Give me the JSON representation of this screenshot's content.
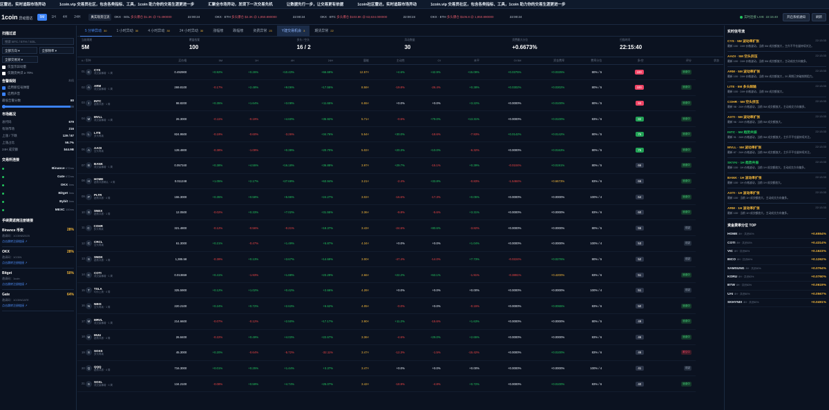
{
  "ticker": [
    "区雷达，实时追踪市场异动",
    "1coin.vip 交易员社区，包含各类指标、工具，1coin 助力你的交易生涯更进一步",
    "汇聚全市场异动，发现下一次交易先机",
    "让数据先行一步，让交易更有依据",
    "1coin社区雷达，实时追踪市场异动",
    "1coin.vip 交易员社区，包含各类指标、工具，1coin 助力你的交易生涯更进一步"
  ],
  "header": {
    "logo": "1coin",
    "logo_sub": "异动雷达",
    "timeframes": [
      "5M",
      "1H",
      "4H",
      "24H"
    ],
    "chip": "真实现货汪流",
    "live": [
      {
        "ex": "OKX · SOL",
        "msg": "多头爆仓 $1.3K @ 73.490000",
        "time": "22:00:24"
      },
      {
        "ex": "OKX · ETH",
        "msg": "多头爆仓 $2.3K @ 1,850.890000",
        "time": "22:00:24"
      },
      {
        "ex": "OKX · BTC",
        "msg": "多头爆仓 $103.8K @ 63,634.000000",
        "time": "22:00:24"
      },
      {
        "ex": "OKX · ETH",
        "msg": "多头爆仓 $105.8 @ 1,850.890000",
        "time": "22:00:24"
      }
    ],
    "status": "实时连接 LIVE",
    "clock": "22:15:40",
    "btn_notify": "开启系统通知",
    "btn_other": "刷新"
  },
  "sidebar": {
    "filter_title": "扫描过滤",
    "search_placeholder": "搜索 BTC / ETH / SOL",
    "dir": "全部方向",
    "pool": "全部频率",
    "rule": "全部交易对",
    "chk1": "仅显示异动量",
    "chk2": "仅期货共识 ≥ 70%",
    "alert_title": "告警规则",
    "alert_sub": "本机",
    "alert1": "启用新信号弹窗",
    "alert2": "启用声音",
    "min_score_label": "最低告警分数",
    "min_score": "80",
    "market_title": "市场概况",
    "market": [
      {
        "k": "总代码",
        "v": "679"
      },
      {
        "k": "有效市场",
        "v": "216"
      },
      {
        "k": "上涨 / 下跌",
        "v": "129 / 87"
      },
      {
        "k": "上涨占比",
        "v": "59.7%"
      },
      {
        "k": "24H 成交额",
        "v": "$44.9B"
      }
    ],
    "ex_title": "交易所连接",
    "exchanges": [
      {
        "name": "Binance",
        "lat": "672ms"
      },
      {
        "name": "Gate",
        "lat": "672ms"
      },
      {
        "name": "OKX",
        "lat": "4ms"
      },
      {
        "name": "Bitget",
        "lat": "3ms"
      },
      {
        "name": "Bybit",
        "lat": "5ms"
      },
      {
        "name": "MEXC",
        "lat": "100ms"
      }
    ],
    "rebate_title": "手续费返佣注册链接",
    "rebates": [
      {
        "name": "Binance 币安",
        "pct": "28%",
        "code": "邀请码：1COINB2025",
        "link": "点击跳转注册链接 ↗"
      },
      {
        "name": "OKX",
        "pct": "28%",
        "code": "邀请码：1COIN",
        "link": "点击跳转注册链接 ↗"
      },
      {
        "name": "Bitget",
        "pct": "50%",
        "code": "邀请码：1coin",
        "link": "点击跳转注册链接 ↗"
      },
      {
        "name": "Gate",
        "pct": "64%",
        "code": "邀请码：1COINGATE",
        "link": "点击跳转注册链接 ↗"
      }
    ]
  },
  "tabs": [
    {
      "label": "5 分钟异动",
      "count": "30"
    },
    {
      "label": "1 小时异动",
      "count": "30"
    },
    {
      "label": "4 小时异动",
      "count": "30"
    },
    {
      "label": "24 小时异动",
      "count": "30"
    },
    {
      "label": "涨幅榜",
      "count": ""
    },
    {
      "label": "跌幅榜",
      "count": ""
    },
    {
      "label": "资费异常",
      "count": "23"
    },
    {
      "label": "Y建交易机会",
      "count": "3"
    },
    {
      "label": "期货异常",
      "count": "22"
    }
  ],
  "stats": [
    {
      "k": "当前周期",
      "v": "5M"
    },
    {
      "k": "覆盖档案",
      "v": "100"
    },
    {
      "k": "多头 / 空头",
      "v": "16 / 2"
    },
    {
      "k": "异动数量",
      "v": "30"
    },
    {
      "k": "资费最大分位",
      "v": "+0.6673%"
    },
    {
      "k": "扫描时间",
      "v": "22:15:40"
    }
  ],
  "columns": [
    "# / 币种",
    "买价格",
    "5M",
    "1H",
    "4H",
    "24H",
    "量能",
    "主动性",
    "OI",
    "未平",
    "OI 5M",
    "资金费率",
    "费率分位",
    "多/空",
    "评分",
    "状态"
  ],
  "rows": [
    {
      "rk": "01",
      "ic": "C",
      "sym": "CYS",
      "sub": "成交量暴增 · 1 周",
      "p": "0.492900",
      "c": [
        "+0.92%",
        "+0.26%",
        "+10.43%",
        "+66.69%"
      ],
      "v": "12.57×",
      "a": "+4.6%",
      "oi": "+42.9%",
      "u": "+15.09%",
      "o5": "+0.0375%",
      "fr": "+0.0325%",
      "ls": "80% / 5",
      "sc": "100",
      "sv": 1,
      "tg": "追涨中",
      "tv": 0
    },
    {
      "rk": "02",
      "ic": "A",
      "sym": "ARM",
      "sub": "成交量暴增 · 1 周",
      "p": "269.8100",
      "c": [
        "-0.17%",
        "+2.48%",
        "+9.06%",
        "+17.55%"
      ],
      "v": "8.58×",
      "a": "-19.8%",
      "oi": "-26.4%",
      "u": "+0.38%",
      "o5": "+0.0302%",
      "fr": "+0.0302%",
      "ls": "80% / 5",
      "sc": "100",
      "sv": 1,
      "tg": "追涨中",
      "tv": 0
    },
    {
      "rk": "03",
      "ic": "I",
      "sym": "INTC",
      "sub": "趋势共振 · 1 周",
      "p": "98.8200",
      "c": [
        "+0.35%",
        "+1.64%",
        "+3.08%",
        "+11.65%"
      ],
      "v": "6.55×",
      "a": "+0.0%",
      "oi": "+0.0%",
      "u": "+3.22%",
      "o5": "+0.0000%",
      "fr": "+0.0100%",
      "ls": "80% / 5",
      "sc": "93",
      "sv": 1,
      "tg": "追涨中",
      "tv": 0
    },
    {
      "rk": "04",
      "ic": "M",
      "sym": "MVLL",
      "sub": "成交量暴增 · 4 周",
      "p": "26.3000",
      "c": [
        "-0.11%",
        "-0.19%",
        "+4.60%",
        "+35.92%"
      ],
      "v": "5.71×",
      "a": "-0.5%",
      "oi": "+79.0%",
      "u": "+13.31%",
      "o5": "+0.0000%",
      "fr": "+0.0100%",
      "ls": "83% / 6",
      "sc": "82",
      "sv": 2,
      "tg": "追涨中",
      "tv": 0
    },
    {
      "rk": "05",
      "ic": "L",
      "sym": "LITE",
      "sub": "多头再续",
      "p": "824.9500",
      "c": [
        "-0.19%",
        "-0.60%",
        "-3.26%",
        "+34.76%"
      ],
      "v": "5.54×",
      "a": "+30.0%",
      "oi": "-18.6%",
      "u": "-7.93%",
      "o5": "+0.0142%",
      "fr": "+0.0142%",
      "ls": "80% / 5",
      "sc": "76",
      "sv": 2,
      "tg": "追涨中",
      "tv": 0
    },
    {
      "rk": "06",
      "ic": "A",
      "sym": "AAOI",
      "sub": "空头再续",
      "p": "128.4800",
      "c": [
        "-0.38%",
        "-1.09%",
        "+0.39%",
        "+20.70%"
      ],
      "v": "5.02×",
      "a": "+20.3%",
      "oi": "+10.0%",
      "u": "-6.32%",
      "o5": "+0.0000%",
      "fr": "+0.0163%",
      "ls": "80% / 5",
      "sc": "76",
      "sv": 2,
      "tg": "追涨中",
      "tv": 0
    },
    {
      "rk": "07",
      "ic": "B",
      "sym": "BANK",
      "sub": "成交量暴增 · 1 周",
      "p": "0.057340",
      "c": [
        "+0.38%",
        "+4.55%",
        "+16.18%",
        "+36.88%"
      ],
      "v": "3.97×",
      "a": "+29.7%",
      "oi": "-15.1%",
      "u": "+0.39%",
      "o5": "-0.0104%",
      "fr": "+0.0191%",
      "ls": "80% / 5",
      "sc": "66",
      "sv": 0,
      "tg": "追涨中",
      "tv": 0
    },
    {
      "rk": "08",
      "ic": "H",
      "sym": "HOME",
      "sub": "趋势共振确认 · 4 周",
      "p": "0.011248",
      "c": [
        "+1.05%",
        "+2.17%",
        "+27.69%",
        "+63.94%"
      ],
      "v": "3.21×",
      "a": "-2.4%",
      "oi": "+33.8%",
      "u": "-0.83%",
      "o5": "-1.5484%",
      "fr": "+0.6673%",
      "ls": "83% / 6",
      "sc": "66",
      "sv": 0,
      "tg": "追涨中",
      "tv": 0
    },
    {
      "rk": "09",
      "ic": "P",
      "sym": "PLTR",
      "sub": "趋势共振 · 4 周",
      "p": "155.3000",
      "c": [
        "+0.35%",
        "+0.58%",
        "+5.96%",
        "+24.27%"
      ],
      "v": "3.02×",
      "a": "-16.6%",
      "oi": "-17.3%",
      "u": "+0.05%",
      "o5": "+0.0000%",
      "fr": "+0.0000%",
      "ls": "100% / 4",
      "sc": "64",
      "sv": 0,
      "tg": "追涨中",
      "tv": 0
    },
    {
      "rk": "10",
      "ic": "S",
      "sym": "SNEX",
      "sub": "趋势共振 · 1 周",
      "p": "12.0500",
      "c": [
        "-0.02%",
        "+0.33%",
        "+7.02%",
        "+31.55%"
      ],
      "v": "3.36×",
      "a": "-9.8%",
      "oi": "-5.6%",
      "u": "+3.31%",
      "o5": "+0.0000%",
      "fr": "+0.0000%",
      "ls": "83% / 6",
      "sc": "60",
      "sv": 0,
      "tg": "追涨中",
      "tv": 0
    },
    {
      "rk": "11",
      "ic": "C",
      "sym": "COHR",
      "sub": "多头再续",
      "p": "321.4800",
      "c": [
        "-0.12%",
        "-0.56%",
        "-0.21%",
        "+18.37%"
      ],
      "v": "3.43×",
      "a": "-24.6%",
      "oi": "+80.6%",
      "u": "-3.82%",
      "o5": "+0.0000%",
      "fr": "+0.0000%",
      "ls": "80% / 5",
      "sc": "55",
      "sv": 0,
      "tg": "观望",
      "tv": 1
    },
    {
      "rk": "12",
      "ic": "C",
      "sym": "CRCL",
      "sub": "空头再续",
      "p": "61.3000",
      "c": [
        "+0.21%",
        "-0.47%",
        "+1.49%",
        "+5.87%"
      ],
      "v": "4.34×",
      "a": "+0.0%",
      "oi": "+0.0%",
      "u": "+1.04%",
      "o5": "+0.0000%",
      "fr": "+0.0000%",
      "ls": "100% / 4",
      "sc": "53",
      "sv": 0,
      "tg": "观望",
      "tv": 1
    },
    {
      "rk": "13",
      "ic": "S",
      "sym": "SNDK",
      "sub": "趋势共振 · 1 周",
      "p": "1,385.58",
      "c": [
        "-0.39%",
        "+0.13%",
        "+3.67%",
        "+14.69%"
      ],
      "v": "3.00×",
      "a": "-47.4%",
      "oi": "-14.0%",
      "u": "+7.73%",
      "o5": "-0.0224%",
      "fr": "+0.0276%",
      "ls": "80% / 5",
      "sc": "52",
      "sv": 0,
      "tg": "观望",
      "tv": 1
    },
    {
      "rk": "14",
      "ic": "C",
      "sym": "COTI",
      "sub": "成交量暴增 · 1 周",
      "p": "0.013659",
      "c": [
        "+0.41%",
        "-1.93%",
        "+1.88%",
        "+23.29%"
      ],
      "v": "2.66×",
      "a": "+22.2%",
      "oi": "+63.1%",
      "u": "-1.91%",
      "o5": "-0.3891%",
      "fr": "+0.4200%",
      "ls": "83% / 6",
      "sc": "51",
      "sv": 0,
      "tg": "追涨中",
      "tv": 0
    },
    {
      "rk": "15",
      "ic": "T",
      "sym": "TSLA",
      "sub": "均价上扬 · 4 周",
      "p": "325.5900",
      "c": [
        "+0.12%",
        "+1.02%",
        "+0.42%",
        "+2.66%"
      ],
      "v": "4.28×",
      "a": "+0.0%",
      "oi": "+0.0%",
      "u": "+0.00%",
      "o5": "+0.0000%",
      "fr": "+0.0000%",
      "ls": "100% / 4",
      "sc": "51",
      "sv": 0,
      "tg": "观望",
      "tv": 1
    },
    {
      "rk": "16",
      "ic": "N",
      "sym": "NBIS",
      "sub": "空头再续 · 1 周",
      "p": "220.2100",
      "c": [
        "+0.24%",
        "+0.72%",
        "+2.63%",
        "+6.62%"
      ],
      "v": "4.05×",
      "a": "-0.0%",
      "oi": "+0.0%",
      "u": "-0.15%",
      "o5": "+0.0000%",
      "fr": "+0.0065%",
      "ls": "83% / 6",
      "sc": "50",
      "sv": 0,
      "tg": "追涨中",
      "tv": 0
    },
    {
      "rk": "17",
      "ic": "M",
      "sym": "MRVL",
      "sub": "成交量暴增 · 1 周",
      "p": "214.6600",
      "c": [
        "-0.07%",
        "-0.12%",
        "+2.50%",
        "+17.17%"
      ],
      "v": "3.90×",
      "a": "+11.2%",
      "oi": "-15.6%",
      "u": "+1.63%",
      "o5": "+0.0000%",
      "fr": "+0.0000%",
      "ls": "80% / 5",
      "sc": "49",
      "sv": 0,
      "tg": "追涨中",
      "tv": 0
    },
    {
      "rk": "18",
      "ic": "M",
      "sym": "MUU",
      "sub": "趋势共振 · 4 周",
      "p": "26.8400",
      "c": [
        "-0.22%",
        "+0.49%",
        "+4.03%",
        "+22.67%"
      ],
      "v": "3.36×",
      "a": "-4.6%",
      "oi": "+29.0%",
      "u": "+2.65%",
      "o5": "+0.0000%",
      "fr": "+0.0000%",
      "ls": "83% / 6",
      "sc": "46",
      "sv": 0,
      "tg": "追涨中",
      "tv": 0
    },
    {
      "rk": "19",
      "ic": "S",
      "sym": "SOXS",
      "sub": "多头再续",
      "p": "45.3000",
      "c": [
        "+0.20%",
        "-0.64%",
        "-5.72%",
        "-32.11%"
      ],
      "v": "3.47×",
      "a": "-12.3%",
      "oi": "-1.5%",
      "u": "-15.42%",
      "o5": "+0.0000%",
      "fr": "+0.0100%",
      "ls": "83% / 6",
      "sc": "46",
      "sv": 0,
      "tg": "跟空中",
      "tv": 2
    },
    {
      "rk": "20",
      "ic": "Q",
      "sym": "QQQ",
      "sub": "趋势共振 · 4 周",
      "p": "716.3000",
      "c": [
        "+0.01%",
        "+0.25%",
        "+1.44%",
        "+3.37%"
      ],
      "v": "3.47×",
      "a": "+0.0%",
      "oi": "+0.0%",
      "u": "+0.00%",
      "o5": "+0.0000%",
      "fr": "+0.0000%",
      "ls": "100% / 4",
      "sc": "41",
      "sv": 0,
      "tg": "观望",
      "tv": 1
    },
    {
      "rk": "21",
      "ic": "S",
      "sym": "SOXL",
      "sub": "成交量暴增 · 4 周",
      "p": "134.2100",
      "c": [
        "-0.08%",
        "+0.59%",
        "+4.74%",
        "+25.07%"
      ],
      "v": "3.42×",
      "a": "-18.9%",
      "oi": "-4.8%",
      "u": "+0.72%",
      "o5": "+0.0000%",
      "fr": "+0.0100%",
      "ls": "83% / 6",
      "sc": "40",
      "sv": 0,
      "tg": "追涨中",
      "tv": 0
    }
  ],
  "right": {
    "title": "实时信号流",
    "signals": [
      {
        "t": "CYS · 5M 波动率扩张",
        "c": "y",
        "time": "22:13:33",
        "d": "最新 100 · 24H 价格波动，当前 5M 成交额放大，主升不平仓量持续关注。"
      },
      {
        "t": "AAOI · 5M 空头挤压",
        "c": "y",
        "time": "22:13:33",
        "d": "最新 100 · 24H 价格波动，当前 5M 成交额放大，主动成交方向偏多。"
      },
      {
        "t": "ARM · 5M 波动率扩张",
        "c": "y",
        "time": "22:13:33",
        "d": "最新 100 · 24H 价格波动，当前 5M 成交额放大，20 周期已突破前期阻力。"
      },
      {
        "t": "LITE · 5M 多头踩踏",
        "c": "y",
        "time": "22:13:33",
        "d": "最新 100 · 24H 价格波动，当前 5M 成交额放大。"
      },
      {
        "t": "COHR · 5M 空头挤压",
        "c": "y",
        "time": "22:13:33",
        "d": "最新 98 · 24H 价格波动，当前 5M 成交额放大，主动成交方向偏多。"
      },
      {
        "t": "AXTI · 5M 波动率扩张",
        "c": "y",
        "time": "22:13:33",
        "d": "最新 96 · 24H 价格波动，当前 5M 成交额放大。"
      },
      {
        "t": "INTC · 5M 趋势共振",
        "c": "g",
        "time": "22:13:33",
        "d": "最新 91 · 24H 价格波动，当前 5M 成交额放大，主升不平仓量持续关注。"
      },
      {
        "t": "MVLL · 5M 波动率扩张",
        "c": "y",
        "time": "22:13:33",
        "d": "最新 87 · 24H 价格波动，当前 5M 成交额放大，主升不平仓量持续关注。"
      },
      {
        "t": "SKYAI · 1H 趋势共振",
        "c": "g",
        "time": "22:13:33",
        "d": "最新 100 · 1H 价格波动，当前 1H 成交额放大，主动成交方向偏多。"
      },
      {
        "t": "BANK · 1H 波动率扩张",
        "c": "y",
        "time": "22:13:33",
        "d": "最新 100 · 1H 价格波动，当前 1H 成交额放大。"
      },
      {
        "t": "AXTI · 1H 波动率扩张",
        "c": "y",
        "time": "22:13:33",
        "d": "最新 100 · 当前 1H 成交额放大，主动成交方向偏多。"
      },
      {
        "t": "ARM · 1H 波动率扩张",
        "c": "y",
        "time": "22:13:33",
        "d": "最新 100 · 当前 1H 成交额放大，主动成交方向偏多。"
      }
    ],
    "fee_title": "资金费率分位 TOP",
    "fees": [
      {
        "s": "HOME",
        "sub": "8H · 共识80%",
        "v": "+0.6554%"
      },
      {
        "s": "COTI",
        "sub": "8H · 共识83%",
        "v": "+0.4314%"
      },
      {
        "s": "VIC",
        "sub": "8H · 共识80%",
        "v": "+0.1623%"
      },
      {
        "s": "BICO",
        "sub": "8H · 共识80%",
        "v": "+0.1262%"
      },
      {
        "s": "SAMSUNG",
        "sub": "8H · 共识80%",
        "v": "+0.0764%"
      },
      {
        "s": "KORU",
        "sub": "8H · 共识83%",
        "v": "+0.0760%"
      },
      {
        "s": "BTW",
        "sub": "8H · 共识83%",
        "v": "+0.0619%"
      },
      {
        "s": "UAI",
        "sub": "8H · 共识80%",
        "v": "+0.0567%"
      },
      {
        "s": "SKHYNIX",
        "sub": "8H · 共识80%",
        "v": "+0.0491%"
      }
    ]
  }
}
